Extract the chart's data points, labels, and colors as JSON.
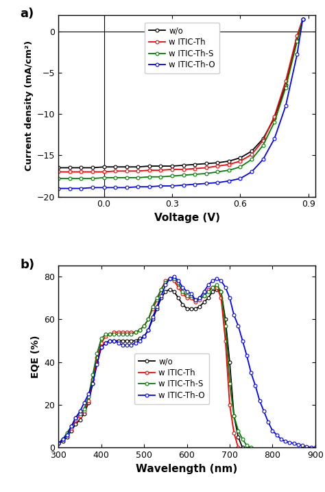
{
  "panel_a": {
    "title": "a)",
    "xlabel": "Voltage (V)",
    "ylabel": "Current density (mA/cm²)",
    "xlim": [
      -0.2,
      0.93
    ],
    "ylim": [
      -20,
      2
    ],
    "xticks": [
      0.0,
      0.3,
      0.6,
      0.9
    ],
    "yticks": [
      -20,
      -15,
      -10,
      -5,
      0
    ],
    "legend_labels": [
      "w/o",
      "w ITIC-Th",
      "w ITIC-Th-S",
      "w ITIC-Th-O"
    ],
    "colors": [
      "black",
      "red",
      "green",
      "blue"
    ],
    "jv_wo": {
      "V": [
        -0.2,
        -0.15,
        -0.1,
        -0.05,
        0.0,
        0.05,
        0.1,
        0.15,
        0.2,
        0.25,
        0.3,
        0.35,
        0.4,
        0.45,
        0.5,
        0.55,
        0.6,
        0.65,
        0.7,
        0.75,
        0.8,
        0.85,
        0.875
      ],
      "J": [
        -16.5,
        -16.5,
        -16.5,
        -16.5,
        -16.4,
        -16.4,
        -16.4,
        -16.4,
        -16.3,
        -16.3,
        -16.3,
        -16.2,
        -16.1,
        -16.0,
        -15.9,
        -15.7,
        -15.3,
        -14.5,
        -13.0,
        -10.5,
        -6.5,
        -1.0,
        1.5
      ]
    },
    "jv_itic_th": {
      "V": [
        -0.2,
        -0.15,
        -0.1,
        -0.05,
        0.0,
        0.05,
        0.1,
        0.15,
        0.2,
        0.25,
        0.3,
        0.35,
        0.4,
        0.45,
        0.5,
        0.55,
        0.6,
        0.65,
        0.7,
        0.75,
        0.8,
        0.85,
        0.875
      ],
      "J": [
        -17.0,
        -17.0,
        -17.0,
        -17.0,
        -17.0,
        -16.9,
        -16.9,
        -16.9,
        -16.8,
        -16.8,
        -16.7,
        -16.7,
        -16.6,
        -16.5,
        -16.3,
        -16.1,
        -15.7,
        -14.9,
        -13.2,
        -10.3,
        -6.0,
        -0.5,
        1.5
      ]
    },
    "jv_itic_th_s": {
      "V": [
        -0.2,
        -0.15,
        -0.1,
        -0.05,
        0.0,
        0.05,
        0.1,
        0.15,
        0.2,
        0.25,
        0.3,
        0.35,
        0.4,
        0.45,
        0.5,
        0.55,
        0.6,
        0.65,
        0.7,
        0.75,
        0.8,
        0.85,
        0.875
      ],
      "J": [
        -17.8,
        -17.8,
        -17.8,
        -17.8,
        -17.7,
        -17.7,
        -17.7,
        -17.7,
        -17.6,
        -17.6,
        -17.5,
        -17.4,
        -17.3,
        -17.2,
        -17.0,
        -16.8,
        -16.4,
        -15.5,
        -13.8,
        -11.0,
        -6.8,
        -1.2,
        1.5
      ]
    },
    "jv_itic_th_o": {
      "V": [
        -0.2,
        -0.15,
        -0.1,
        -0.05,
        0.0,
        0.05,
        0.1,
        0.15,
        0.2,
        0.25,
        0.3,
        0.35,
        0.4,
        0.45,
        0.5,
        0.55,
        0.6,
        0.65,
        0.7,
        0.75,
        0.8,
        0.85,
        0.875
      ],
      "J": [
        -19.0,
        -19.0,
        -19.0,
        -18.9,
        -18.9,
        -18.9,
        -18.9,
        -18.8,
        -18.8,
        -18.7,
        -18.7,
        -18.6,
        -18.5,
        -18.4,
        -18.3,
        -18.1,
        -17.8,
        -17.0,
        -15.5,
        -13.0,
        -9.0,
        -2.8,
        1.5
      ]
    }
  },
  "panel_b": {
    "title": "b)",
    "xlabel": "Wavelength (nm)",
    "ylabel": "EQE (%)",
    "xlim": [
      300,
      900
    ],
    "ylim": [
      0,
      85
    ],
    "xticks": [
      300,
      400,
      500,
      600,
      700,
      800,
      900
    ],
    "yticks": [
      0,
      20,
      40,
      60,
      80
    ],
    "legend_labels": [
      "w/o",
      "w ITIC-Th",
      "w ITIC-Th-S",
      "w ITIC-Th-O"
    ],
    "colors": [
      "black",
      "red",
      "green",
      "blue"
    ],
    "eqe_wo": {
      "wl": [
        300,
        310,
        320,
        330,
        340,
        350,
        360,
        370,
        380,
        390,
        400,
        410,
        420,
        430,
        440,
        450,
        460,
        470,
        480,
        490,
        500,
        510,
        520,
        530,
        540,
        550,
        560,
        570,
        580,
        590,
        600,
        610,
        620,
        630,
        640,
        650,
        660,
        670,
        680,
        690,
        700,
        710,
        720,
        730
      ],
      "eqe": [
        2,
        3,
        5,
        8,
        11,
        13,
        16,
        21,
        30,
        40,
        47,
        49,
        50,
        50,
        50,
        50,
        50,
        50,
        50,
        51,
        52,
        55,
        60,
        65,
        70,
        73,
        74,
        73,
        70,
        67,
        65,
        65,
        65,
        66,
        68,
        70,
        73,
        74,
        73,
        60,
        40,
        15,
        5,
        0
      ]
    },
    "eqe_itic_th": {
      "wl": [
        300,
        310,
        320,
        330,
        340,
        350,
        360,
        370,
        380,
        390,
        400,
        410,
        420,
        430,
        440,
        450,
        460,
        470,
        480,
        490,
        500,
        510,
        520,
        530,
        540,
        550,
        560,
        570,
        580,
        590,
        600,
        610,
        620,
        630,
        640,
        650,
        660,
        670,
        680,
        690,
        700,
        710,
        720
      ],
      "eqe": [
        2,
        4,
        6,
        9,
        13,
        15,
        17,
        22,
        32,
        42,
        49,
        52,
        53,
        54,
        54,
        54,
        54,
        54,
        54,
        55,
        57,
        60,
        65,
        69,
        74,
        78,
        79,
        78,
        75,
        72,
        70,
        70,
        68,
        69,
        71,
        74,
        75,
        75,
        70,
        50,
        20,
        7,
        0
      ]
    },
    "eqe_itic_th_s": {
      "wl": [
        300,
        310,
        320,
        330,
        340,
        350,
        360,
        370,
        380,
        390,
        400,
        410,
        420,
        430,
        440,
        450,
        460,
        470,
        480,
        490,
        500,
        510,
        520,
        530,
        540,
        550,
        560,
        570,
        580,
        590,
        600,
        610,
        620,
        630,
        640,
        650,
        660,
        670,
        680,
        690,
        700,
        710,
        720,
        730,
        740,
        750
      ],
      "eqe": [
        2,
        4,
        7,
        10,
        14,
        16,
        18,
        24,
        34,
        44,
        51,
        53,
        53,
        53,
        53,
        53,
        53,
        53,
        54,
        55,
        57,
        60,
        66,
        70,
        74,
        77,
        79,
        79,
        77,
        73,
        71,
        71,
        69,
        70,
        71,
        73,
        75,
        76,
        73,
        57,
        30,
        15,
        8,
        4,
        1,
        0
      ]
    },
    "eqe_itic_th_o": {
      "wl": [
        300,
        310,
        320,
        330,
        340,
        350,
        360,
        370,
        380,
        390,
        400,
        410,
        420,
        430,
        440,
        450,
        460,
        470,
        480,
        490,
        500,
        510,
        520,
        530,
        540,
        550,
        560,
        570,
        580,
        590,
        600,
        610,
        620,
        630,
        640,
        650,
        660,
        670,
        680,
        690,
        700,
        710,
        720,
        730,
        740,
        750,
        760,
        770,
        780,
        790,
        800,
        810,
        820,
        830,
        840,
        850,
        860,
        870,
        880,
        890,
        900
      ],
      "eqe": [
        2,
        4,
        6,
        10,
        14,
        17,
        21,
        25,
        30,
        39,
        47,
        49,
        50,
        50,
        49,
        48,
        48,
        48,
        49,
        50,
        52,
        55,
        61,
        66,
        71,
        76,
        79,
        80,
        78,
        75,
        73,
        72,
        69,
        70,
        73,
        76,
        78,
        79,
        78,
        75,
        70,
        62,
        57,
        50,
        43,
        35,
        29,
        22,
        17,
        12,
        8,
        6,
        4,
        3,
        2.5,
        2,
        1.5,
        1,
        0.5,
        0.2,
        0
      ]
    }
  }
}
